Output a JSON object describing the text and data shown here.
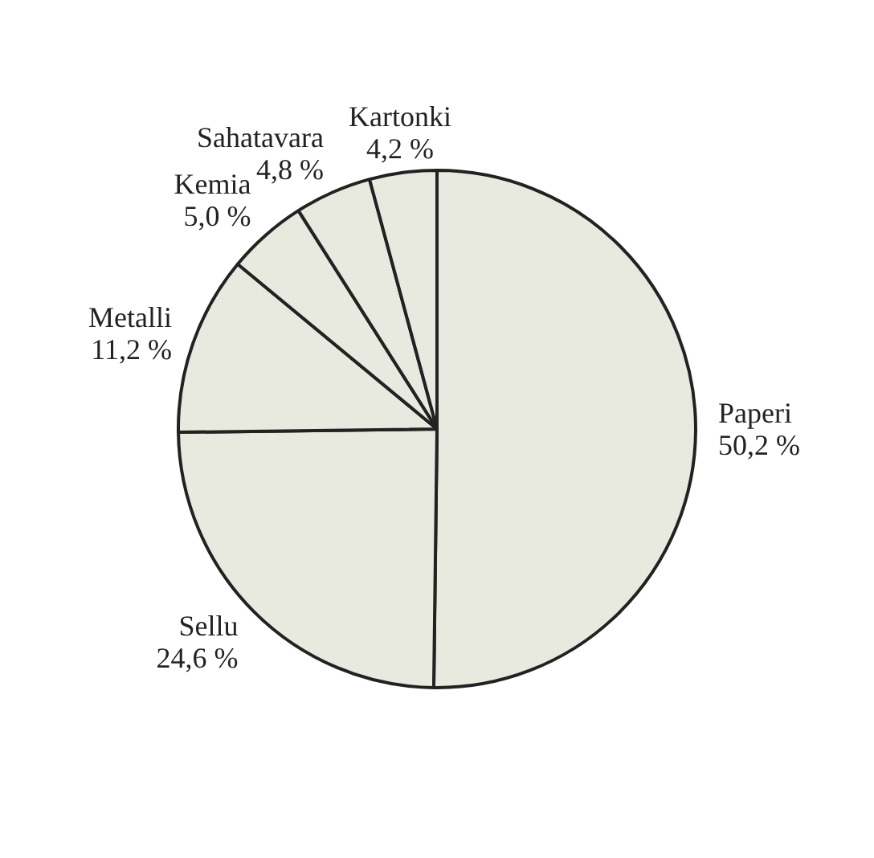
{
  "chart_data": {
    "type": "pie",
    "categories": [
      "Paperi",
      "Sellu",
      "Metalli",
      "Kemia",
      "Sahatavara",
      "Kartonki"
    ],
    "values": [
      50.2,
      24.6,
      11.2,
      5.0,
      4.8,
      4.2
    ],
    "value_labels": [
      "50,2 %",
      "24,6 %",
      "11,2 %",
      "5,0 %",
      "4,8 %",
      "4,2 %"
    ],
    "colors": [
      "#e8eadf",
      "#e8eadf",
      "#e8eadf",
      "#e8eadf",
      "#e8eadf",
      "#e8eadf"
    ],
    "legend": false
  }
}
